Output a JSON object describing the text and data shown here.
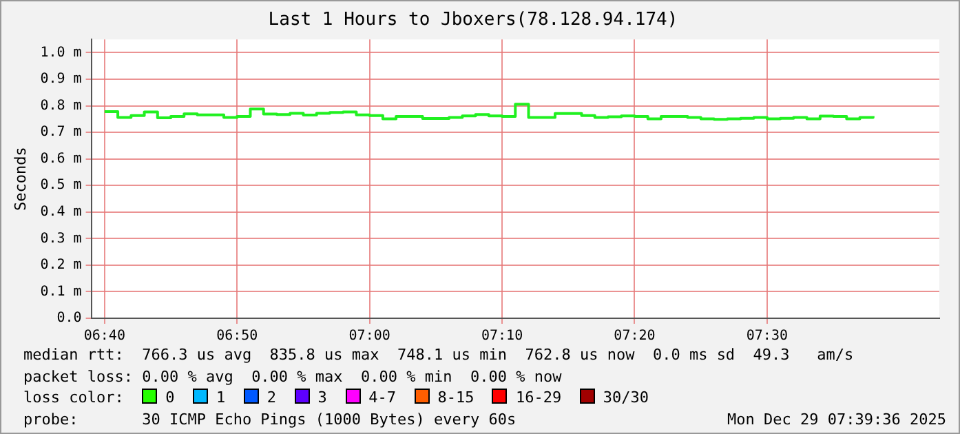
{
  "chart_data": {
    "type": "step",
    "title": "Last 1 Hours to Jboxers(78.128.94.174)",
    "ylabel": "Seconds",
    "x": [
      "2025-12-29T06:40",
      "2025-12-29T06:41",
      "2025-12-29T06:42",
      "2025-12-29T06:43",
      "2025-12-29T06:44",
      "2025-12-29T06:45",
      "2025-12-29T06:46",
      "2025-12-29T06:47",
      "2025-12-29T06:48",
      "2025-12-29T06:49",
      "2025-12-29T06:50",
      "2025-12-29T06:51",
      "2025-12-29T06:52",
      "2025-12-29T06:53",
      "2025-12-29T06:54",
      "2025-12-29T06:55",
      "2025-12-29T06:56",
      "2025-12-29T06:57",
      "2025-12-29T06:58",
      "2025-12-29T06:59",
      "2025-12-29T07:00",
      "2025-12-29T07:01",
      "2025-12-29T07:02",
      "2025-12-29T07:03",
      "2025-12-29T07:04",
      "2025-12-29T07:05",
      "2025-12-29T07:06",
      "2025-12-29T07:07",
      "2025-12-29T07:08",
      "2025-12-29T07:09",
      "2025-12-29T07:10",
      "2025-12-29T07:11",
      "2025-12-29T07:12",
      "2025-12-29T07:13",
      "2025-12-29T07:14",
      "2025-12-29T07:15",
      "2025-12-29T07:16",
      "2025-12-29T07:17",
      "2025-12-29T07:18",
      "2025-12-29T07:19",
      "2025-12-29T07:20",
      "2025-12-29T07:21",
      "2025-12-29T07:22",
      "2025-12-29T07:23",
      "2025-12-29T07:24",
      "2025-12-29T07:25",
      "2025-12-29T07:26",
      "2025-12-29T07:27",
      "2025-12-29T07:28",
      "2025-12-29T07:29",
      "2025-12-29T07:30",
      "2025-12-29T07:31",
      "2025-12-29T07:32",
      "2025-12-29T07:33",
      "2025-12-29T07:34",
      "2025-12-29T07:35",
      "2025-12-29T07:36",
      "2025-12-29T07:37",
      "2025-12-29T07:38"
    ],
    "series": [
      {
        "color": "#20f020",
        "values": [
          0.778,
          0.756,
          0.763,
          0.777,
          0.755,
          0.76,
          0.77,
          0.766,
          0.766,
          0.756,
          0.76,
          0.788,
          0.769,
          0.767,
          0.772,
          0.765,
          0.772,
          0.775,
          0.777,
          0.766,
          0.763,
          0.751,
          0.76,
          0.76,
          0.752,
          0.752,
          0.756,
          0.762,
          0.767,
          0.762,
          0.76,
          0.806,
          0.756,
          0.756,
          0.771,
          0.771,
          0.763,
          0.756,
          0.759,
          0.762,
          0.76,
          0.751,
          0.76,
          0.76,
          0.756,
          0.751,
          0.749,
          0.751,
          0.753,
          0.756,
          0.751,
          0.753,
          0.756,
          0.751,
          0.761,
          0.76,
          0.751,
          0.756,
          0.761
        ]
      }
    ],
    "xlim": [
      "2025-12-29T06:39",
      "2025-12-29T07:43"
    ],
    "xticks": [
      {
        "value": "2025-12-29T06:40",
        "label": "06:40"
      },
      {
        "value": "2025-12-29T06:50",
        "label": "06:50"
      },
      {
        "value": "2025-12-29T07:00",
        "label": "07:00"
      },
      {
        "value": "2025-12-29T07:10",
        "label": "07:10"
      },
      {
        "value": "2025-12-29T07:20",
        "label": "07:20"
      },
      {
        "value": "2025-12-29T07:30",
        "label": "07:30"
      }
    ],
    "ylim": [
      0,
      1.05
    ],
    "yticks": [
      {
        "value": 0,
        "label": "0.0"
      },
      {
        "value": 0.1,
        "label": "0.1 m"
      },
      {
        "value": 0.2,
        "label": "0.2 m"
      },
      {
        "value": 0.3,
        "label": "0.3 m"
      },
      {
        "value": 0.4,
        "label": "0.4 m"
      },
      {
        "value": 0.5,
        "label": "0.5 m"
      },
      {
        "value": 0.6,
        "label": "0.6 m"
      },
      {
        "value": 0.7,
        "label": "0.7 m"
      },
      {
        "value": 0.8,
        "label": "0.8 m"
      },
      {
        "value": 0.9,
        "label": "0.9 m"
      },
      {
        "value": 1.0,
        "label": "1.0 m"
      }
    ],
    "grid": true,
    "legend": false,
    "marker": "none",
    "line_style": "solid",
    "annotations": [
      "median rtt:  766.3 us avg  835.8 us max  748.1 us min  762.8 us now  0.0 ms sd  49.3   am/s",
      "packet loss: 0.00 % avg  0.00 % max  0.00 % min  0.00 % now",
      "loss color:  0  1  2  3  4-7  8-15  16-29  30/30",
      "probe:       30 ICMP Echo Pings (1000 Bytes) every 60s",
      "Mon Dec 29 07:39:36 2025"
    ]
  }
}
